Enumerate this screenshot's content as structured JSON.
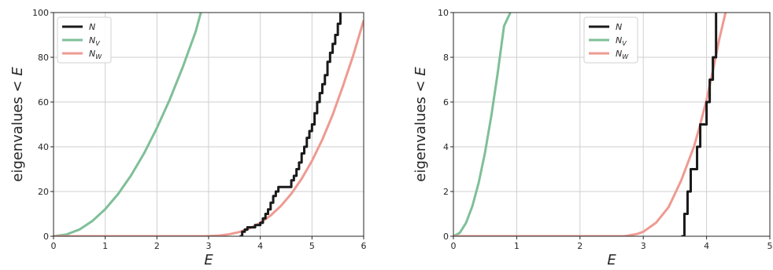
{
  "chart_data": [
    {
      "type": "line",
      "xlabel": "E",
      "ylabel": "eigenvalues < E",
      "xlim": [
        0,
        6
      ],
      "ylim": [
        0,
        100
      ],
      "xticks": [
        "0",
        "1",
        "2",
        "3",
        "4",
        "5",
        "6"
      ],
      "yticks": [
        "0",
        "20",
        "40",
        "60",
        "80",
        "100"
      ],
      "grid": true,
      "legend_position": "top-left",
      "series": [
        {
          "name": "N",
          "legend": {
            "base": "N",
            "sub": ""
          },
          "color": "#1a1a1a",
          "style": "step",
          "x": [
            3.6,
            3.65,
            3.7,
            3.75,
            3.8,
            3.9,
            4.0,
            4.05,
            4.1,
            4.15,
            4.2,
            4.25,
            4.3,
            4.35,
            4.4,
            4.6,
            4.65,
            4.7,
            4.75,
            4.8,
            4.85,
            4.9,
            4.95,
            5.0,
            5.05,
            5.1,
            5.15,
            5.2,
            5.25,
            5.3,
            5.35,
            5.4,
            5.45,
            5.5,
            5.55
          ],
          "y": [
            0,
            2,
            3,
            4,
            4,
            5,
            6,
            8,
            10,
            12,
            15,
            18,
            20,
            22,
            22,
            25,
            27,
            30,
            33,
            37,
            40,
            44,
            47,
            50,
            55,
            60,
            64,
            68,
            72,
            78,
            82,
            86,
            90,
            95,
            100
          ]
        },
        {
          "name": "N_V",
          "legend": {
            "base": "N",
            "sub": "V"
          },
          "color": "#7fbf98",
          "style": "curve",
          "x": [
            0,
            0.25,
            0.5,
            0.75,
            1.0,
            1.25,
            1.5,
            1.75,
            2.0,
            2.25,
            2.5,
            2.75,
            2.85
          ],
          "y": [
            0,
            0.8,
            3,
            6.8,
            12.1,
            18.9,
            27.2,
            37.0,
            48.4,
            61.2,
            75.6,
            91.5,
            100
          ]
        },
        {
          "name": "N_W",
          "legend": {
            "base": "N",
            "sub": "W"
          },
          "color": "#ef9a92",
          "style": "curve",
          "x": [
            0,
            2.9,
            3.0,
            3.2,
            3.4,
            3.6,
            3.8,
            4.0,
            4.2,
            4.4,
            4.6,
            4.8,
            5.0,
            5.2,
            5.4,
            5.6,
            5.8,
            6.0
          ],
          "y": [
            0,
            0,
            0.1,
            0.3,
            0.9,
            1.9,
            3.6,
            6.0,
            9.3,
            13.6,
            19.0,
            25.7,
            33.7,
            43.2,
            54.3,
            67.2,
            81.0,
            96.5
          ]
        }
      ]
    },
    {
      "type": "line",
      "xlabel": "E",
      "ylabel": "eigenvalues < E",
      "xlim": [
        0,
        5
      ],
      "ylim": [
        0,
        10
      ],
      "xticks": [
        "0",
        "1",
        "2",
        "3",
        "4",
        "5"
      ],
      "yticks": [
        "0",
        "2",
        "4",
        "6",
        "8",
        "10"
      ],
      "grid": true,
      "legend_position": "top-center",
      "series": [
        {
          "name": "N",
          "legend": {
            "base": "N",
            "sub": ""
          },
          "color": "#1a1a1a",
          "style": "step",
          "x": [
            3.6,
            3.65,
            3.7,
            3.75,
            3.85,
            3.9,
            4.0,
            4.05,
            4.1,
            4.15
          ],
          "y": [
            0,
            1,
            2,
            3,
            4,
            5,
            6,
            7,
            8,
            10
          ]
        },
        {
          "name": "N_V",
          "legend": {
            "base": "N",
            "sub": "V"
          },
          "color": "#7fbf98",
          "style": "curve",
          "x": [
            0,
            0.1,
            0.2,
            0.3,
            0.4,
            0.5,
            0.6,
            0.7,
            0.8,
            0.9
          ],
          "y": [
            0,
            0.15,
            0.6,
            1.35,
            2.4,
            3.75,
            5.4,
            7.3,
            9.4,
            10
          ]
        },
        {
          "name": "N_W",
          "legend": {
            "base": "N",
            "sub": "W"
          },
          "color": "#ef9a92",
          "style": "curve",
          "x": [
            0,
            2.7,
            2.9,
            3.0,
            3.2,
            3.4,
            3.6,
            3.8,
            3.9,
            4.0,
            4.1,
            4.2,
            4.3
          ],
          "y": [
            0,
            0,
            0.1,
            0.2,
            0.6,
            1.3,
            2.5,
            4.0,
            5.0,
            6.1,
            7.4,
            8.8,
            10
          ]
        }
      ]
    }
  ]
}
